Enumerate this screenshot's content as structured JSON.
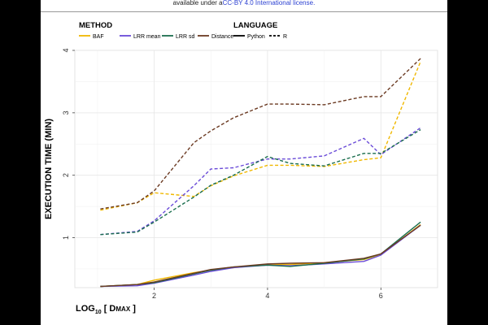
{
  "header": {
    "text_prefix": "available under a",
    "license": "CC-BY 4.0 International license."
  },
  "x_axis_title": {
    "log": "LOG",
    "base": "10",
    "open": " [ D",
    "sub": "MAX",
    "close": " ]"
  },
  "y_axis_title": "EXECUTION TIME (MIN)",
  "legend": {
    "method_title": "METHOD",
    "language_title": "LANGUAGE",
    "methods": [
      {
        "label": "BAF",
        "color": "#F0B800"
      },
      {
        "label": "LRR mean",
        "color": "#6A4BD8"
      },
      {
        "label": "LRR sd",
        "color": "#1B6E4E"
      },
      {
        "label": "Distance",
        "color": "#6B3A22"
      }
    ],
    "languages": [
      {
        "label": "Python",
        "style": "solid"
      },
      {
        "label": "R",
        "style": "dashed"
      }
    ]
  },
  "chart_data": {
    "type": "line",
    "xlabel": "LOG10 [ DMAX ]",
    "ylabel": "EXECUTION TIME (MIN)",
    "xlim": [
      0.6,
      7.0
    ],
    "ylim": [
      0.2,
      4.0
    ],
    "x_ticks": [
      2,
      4,
      6
    ],
    "y_ticks": [
      1,
      2,
      3,
      4
    ],
    "grid": true,
    "legend_position": "top",
    "x": [
      1.05,
      1.7,
      2.0,
      2.7,
      3.0,
      3.4,
      4.0,
      4.4,
      5.0,
      5.7,
      6.0,
      6.7
    ],
    "series": [
      {
        "name": "BAF",
        "language": "Python",
        "values": [
          0.22,
          0.25,
          0.32,
          0.44,
          0.48,
          0.52,
          0.57,
          0.57,
          0.6,
          0.65,
          0.73,
          1.21
        ]
      },
      {
        "name": "LRR mean",
        "language": "Python",
        "values": [
          0.22,
          0.23,
          0.27,
          0.4,
          0.46,
          0.52,
          0.56,
          0.55,
          0.58,
          0.62,
          0.72,
          1.2
        ]
      },
      {
        "name": "LRR sd",
        "language": "Python",
        "values": [
          0.22,
          0.25,
          0.28,
          0.42,
          0.48,
          0.53,
          0.56,
          0.54,
          0.59,
          0.66,
          0.74,
          1.25
        ]
      },
      {
        "name": "Distance",
        "language": "Python",
        "values": [
          0.22,
          0.25,
          0.29,
          0.43,
          0.49,
          0.53,
          0.58,
          0.59,
          0.6,
          0.67,
          0.74,
          1.2
        ]
      },
      {
        "name": "BAF",
        "language": "R",
        "values": [
          1.44,
          1.56,
          1.72,
          1.66,
          1.83,
          1.99,
          2.16,
          2.16,
          2.14,
          2.25,
          2.28,
          3.82
        ]
      },
      {
        "name": "LRR mean",
        "language": "R",
        "values": [
          1.05,
          1.1,
          1.27,
          1.83,
          2.1,
          2.12,
          2.26,
          2.26,
          2.31,
          2.59,
          2.33,
          2.76
        ]
      },
      {
        "name": "LRR sd",
        "language": "R",
        "values": [
          1.05,
          1.09,
          1.25,
          1.65,
          1.84,
          2.0,
          2.3,
          2.19,
          2.15,
          2.35,
          2.35,
          2.73
        ]
      },
      {
        "name": "Distance",
        "language": "R",
        "values": [
          1.46,
          1.56,
          1.75,
          2.52,
          2.71,
          2.92,
          3.14,
          3.14,
          3.13,
          3.26,
          3.26,
          3.87
        ]
      }
    ]
  }
}
